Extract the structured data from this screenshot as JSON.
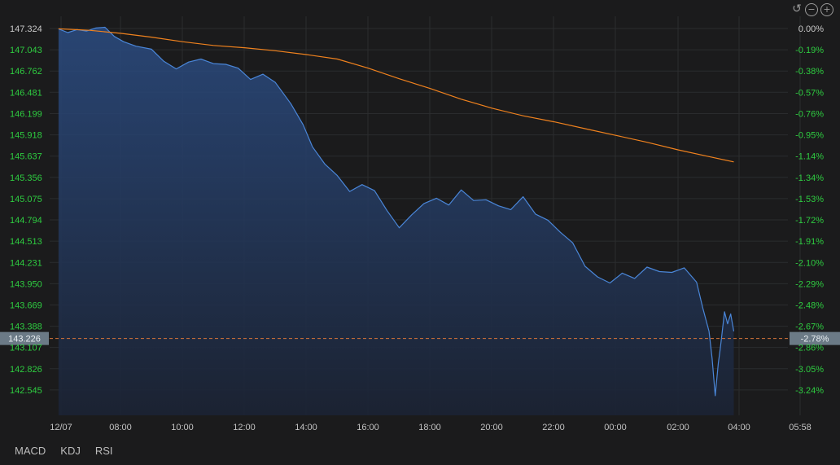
{
  "chart_data": {
    "type": "line",
    "title": "",
    "xlabel": "",
    "ylabel": "",
    "x_tick_labels": [
      "12/07",
      "08:00",
      "10:00",
      "12:00",
      "14:00",
      "16:00",
      "18:00",
      "20:00",
      "22:00",
      "00:00",
      "02:00",
      "04:00",
      "05:58"
    ],
    "y_tick_labels": [
      "147.324",
      "147.043",
      "146.762",
      "146.481",
      "146.199",
      "145.918",
      "145.637",
      "145.356",
      "145.075",
      "144.794",
      "144.513",
      "144.231",
      "143.950",
      "143.669",
      "143.388",
      "143.107",
      "142.826",
      "142.545"
    ],
    "pct_tick_labels": [
      "0.00%",
      "-0.19%",
      "-0.38%",
      "-0.57%",
      "-0.76%",
      "-0.95%",
      "-1.14%",
      "-1.34%",
      "-1.53%",
      "-1.72%",
      "-1.91%",
      "-2.10%",
      "-2.29%",
      "-2.48%",
      "-2.67%",
      "-2.86%",
      "-3.05%",
      "-3.24%"
    ],
    "ylim": [
      142.4,
      147.34
    ],
    "x_unit": "hours since 06:00",
    "xlim": [
      0,
      24
    ],
    "series": [
      {
        "role": "price",
        "color": "#4a86d8",
        "x": [
          0,
          0.3,
          0.6,
          0.9,
          1.2,
          1.5,
          1.8,
          2.1,
          2.5,
          3.0,
          3.4,
          3.8,
          4.2,
          4.6,
          5.0,
          5.4,
          5.8,
          6.2,
          6.6,
          7.0,
          7.5,
          7.9,
          8.2,
          8.6,
          9.0,
          9.4,
          9.8,
          10.2,
          10.6,
          11.0,
          11.4,
          11.8,
          12.2,
          12.6,
          13.0,
          13.4,
          13.8,
          14.2,
          14.6,
          15.0,
          15.4,
          15.8,
          16.2,
          16.6,
          17.0,
          17.4,
          17.8,
          18.2,
          18.6,
          19.0,
          19.4,
          19.8,
          20.2,
          20.6,
          20.8,
          21.0,
          21.1,
          21.2,
          21.3,
          21.35,
          21.4,
          21.5,
          21.6,
          21.7,
          21.8
        ],
        "y": [
          147.32,
          147.27,
          147.31,
          147.29,
          147.33,
          147.34,
          147.22,
          147.15,
          147.09,
          147.05,
          146.89,
          146.79,
          146.88,
          146.92,
          146.86,
          146.85,
          146.8,
          146.65,
          146.72,
          146.61,
          146.33,
          146.05,
          145.76,
          145.53,
          145.38,
          145.17,
          145.26,
          145.18,
          144.92,
          144.69,
          144.86,
          145.01,
          145.08,
          144.99,
          145.19,
          145.05,
          145.06,
          144.98,
          144.93,
          145.1,
          144.87,
          144.79,
          144.63,
          144.49,
          144.18,
          144.04,
          143.96,
          144.09,
          144.02,
          144.17,
          144.11,
          144.1,
          144.16,
          143.97,
          143.63,
          143.32,
          142.96,
          142.47,
          142.9,
          143.05,
          143.22,
          143.58,
          143.42,
          143.55,
          143.32
        ]
      },
      {
        "role": "average",
        "color": "#f0821e",
        "x": [
          0,
          1,
          2,
          3,
          4,
          5,
          6,
          7,
          8,
          9,
          10,
          11,
          12,
          13,
          14,
          15,
          16,
          17,
          18,
          19,
          20,
          21,
          21.8
        ],
        "y": [
          147.32,
          147.3,
          147.26,
          147.21,
          147.15,
          147.1,
          147.07,
          147.03,
          146.98,
          146.92,
          146.8,
          146.66,
          146.53,
          146.39,
          146.27,
          146.17,
          146.09,
          146.0,
          145.91,
          145.82,
          145.72,
          145.63,
          145.56
        ]
      }
    ],
    "reference_line": {
      "value": 143.226,
      "label": "143.226",
      "pct_label": "-2.78%",
      "color": "#d9753a"
    },
    "grid": true
  },
  "tabs": [
    "MACD",
    "KDJ",
    "RSI"
  ],
  "colors": {
    "background": "#1b1b1c",
    "grid": "#2b2c2e",
    "price_axis_text": "#c9c9c9",
    "pct_axis_text": "#2ecc40",
    "area_top": "#2a4a7f"
  }
}
